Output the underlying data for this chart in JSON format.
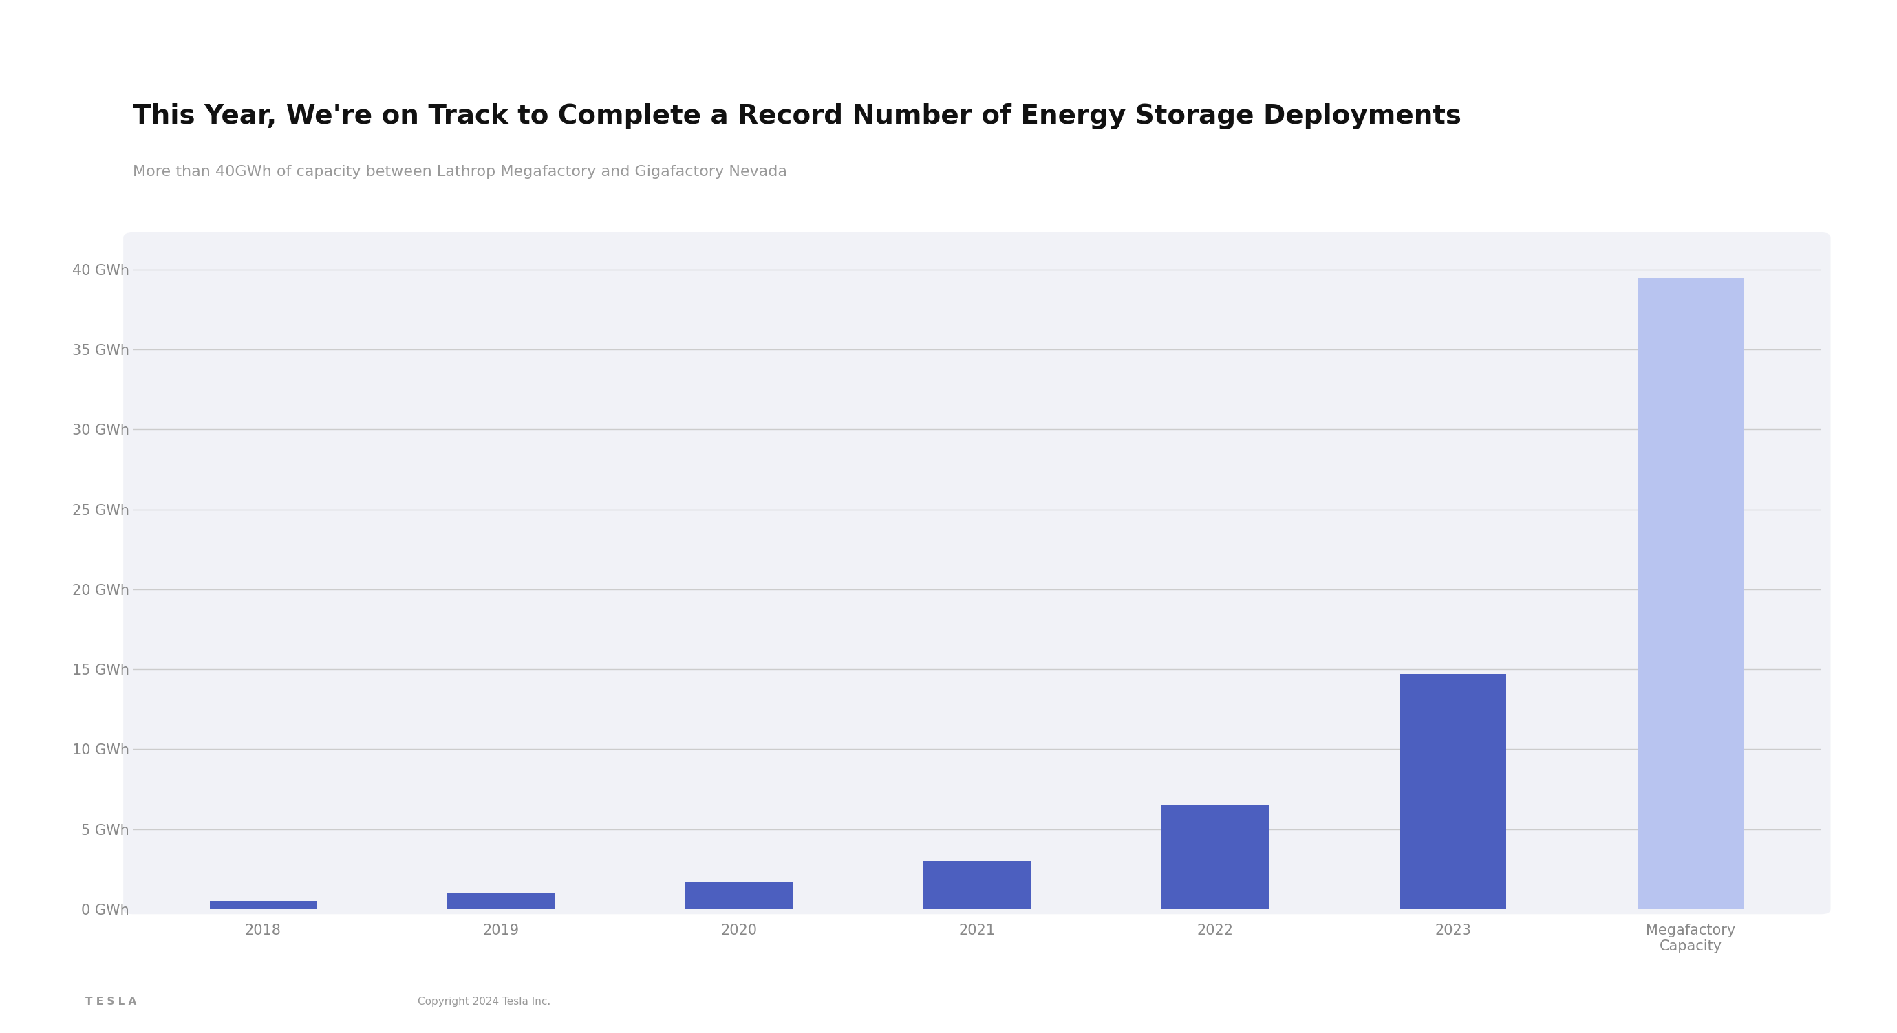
{
  "title": "This Year, We're on Track to Complete a Record Number of Energy Storage Deployments",
  "subtitle": "More than 40GWh of capacity between Lathrop Megafactory and Gigafactory Nevada",
  "categories": [
    "2018",
    "2019",
    "2020",
    "2021",
    "2022",
    "2023",
    "Megafactory\nCapacity"
  ],
  "values": [
    0.5,
    1.0,
    1.65,
    3.0,
    6.5,
    14.7,
    39.5
  ],
  "bar_colors": [
    "#4C5FBF",
    "#4C5FBF",
    "#4C5FBF",
    "#4C5FBF",
    "#4C5FBF",
    "#4C5FBF",
    "#B8C4F0"
  ],
  "background_color": "#F1F2F7",
  "slide_background": "#FFFFFF",
  "yticks": [
    0,
    5,
    10,
    15,
    20,
    25,
    30,
    35,
    40
  ],
  "ylim": [
    0,
    42
  ],
  "ylabel_suffix": " GWh",
  "title_fontsize": 28,
  "subtitle_fontsize": 16,
  "tick_label_fontsize": 15,
  "grid_color": "#CCCCCC",
  "tick_label_color": "#888888",
  "footer_text": "Copyright 2024 Tesla Inc.",
  "tesla_logo_text": "T E S L A"
}
